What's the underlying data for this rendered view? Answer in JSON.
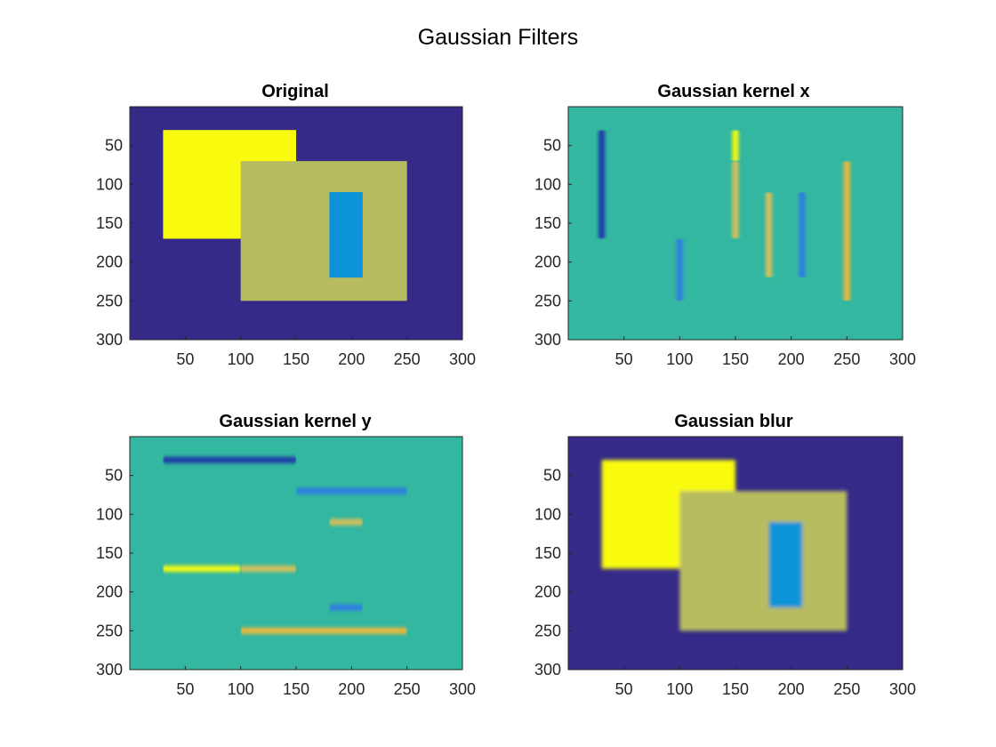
{
  "figure": {
    "title": "Gaussian Filters"
  },
  "colors": {
    "background_dark": "#352a87",
    "background_teal": "#33b7a0",
    "yellow": "#f9fb0e",
    "olive": "#b8bc61",
    "blue_rect": "#0d93d7",
    "edge_dark_blue": "#1f38a8",
    "edge_blue": "#2d7ce2",
    "edge_orange": "#f0b83a",
    "edge_light_orange": "#d9c05a"
  },
  "chart_data": [
    {
      "type": "heatmap",
      "title": "Original",
      "xlim": [
        0,
        300
      ],
      "ylim": [
        0,
        300
      ],
      "xticks": [
        50,
        100,
        150,
        200,
        250,
        300
      ],
      "yticks": [
        50,
        100,
        150,
        200,
        250,
        300
      ],
      "shapes": [
        {
          "x": [
            30,
            150
          ],
          "y": [
            30,
            170
          ],
          "value": "yellow"
        },
        {
          "x": [
            100,
            250
          ],
          "y": [
            70,
            250
          ],
          "value": "olive"
        },
        {
          "x": [
            180,
            210
          ],
          "y": [
            110,
            220
          ],
          "value": "blue_rect"
        }
      ]
    },
    {
      "type": "heatmap",
      "title": "Gaussian kernel x",
      "xlim": [
        0,
        300
      ],
      "ylim": [
        0,
        300
      ],
      "xticks": [
        50,
        100,
        150,
        200,
        250,
        300
      ],
      "yticks": [
        50,
        100,
        150,
        200,
        250,
        300
      ],
      "edges": [
        {
          "x": 30,
          "y": [
            30,
            170
          ],
          "value": "edge_dark_blue"
        },
        {
          "x": 100,
          "y": [
            170,
            250
          ],
          "value": "edge_blue"
        },
        {
          "x": 150,
          "y": [
            30,
            70
          ],
          "value": "yellow"
        },
        {
          "x": 150,
          "y": [
            70,
            170
          ],
          "value": "edge_light_orange"
        },
        {
          "x": 180,
          "y": [
            110,
            220
          ],
          "value": "edge_light_orange"
        },
        {
          "x": 210,
          "y": [
            110,
            220
          ],
          "value": "edge_blue"
        },
        {
          "x": 250,
          "y": [
            70,
            250
          ],
          "value": "edge_orange"
        }
      ]
    },
    {
      "type": "heatmap",
      "title": "Gaussian kernel y",
      "xlim": [
        0,
        300
      ],
      "ylim": [
        0,
        300
      ],
      "xticks": [
        50,
        100,
        150,
        200,
        250,
        300
      ],
      "yticks": [
        50,
        100,
        150,
        200,
        250,
        300
      ],
      "edges": [
        {
          "y": 30,
          "x": [
            30,
            150
          ],
          "value": "edge_dark_blue"
        },
        {
          "y": 70,
          "x": [
            150,
            250
          ],
          "value": "edge_blue"
        },
        {
          "y": 110,
          "x": [
            180,
            210
          ],
          "value": "edge_light_orange"
        },
        {
          "y": 170,
          "x": [
            30,
            100
          ],
          "value": "yellow"
        },
        {
          "y": 170,
          "x": [
            100,
            150
          ],
          "value": "edge_light_orange"
        },
        {
          "y": 220,
          "x": [
            180,
            210
          ],
          "value": "edge_blue"
        },
        {
          "y": 250,
          "x": [
            100,
            250
          ],
          "value": "edge_orange"
        }
      ]
    },
    {
      "type": "heatmap",
      "title": "Gaussian blur",
      "xlim": [
        0,
        300
      ],
      "ylim": [
        0,
        300
      ],
      "xticks": [
        50,
        100,
        150,
        200,
        250,
        300
      ],
      "yticks": [
        50,
        100,
        150,
        200,
        250,
        300
      ],
      "shapes": [
        {
          "x": [
            30,
            150
          ],
          "y": [
            30,
            170
          ],
          "value": "yellow"
        },
        {
          "x": [
            100,
            250
          ],
          "y": [
            70,
            250
          ],
          "value": "olive"
        },
        {
          "x": [
            180,
            210
          ],
          "y": [
            110,
            220
          ],
          "value": "blue_rect"
        }
      ]
    }
  ]
}
